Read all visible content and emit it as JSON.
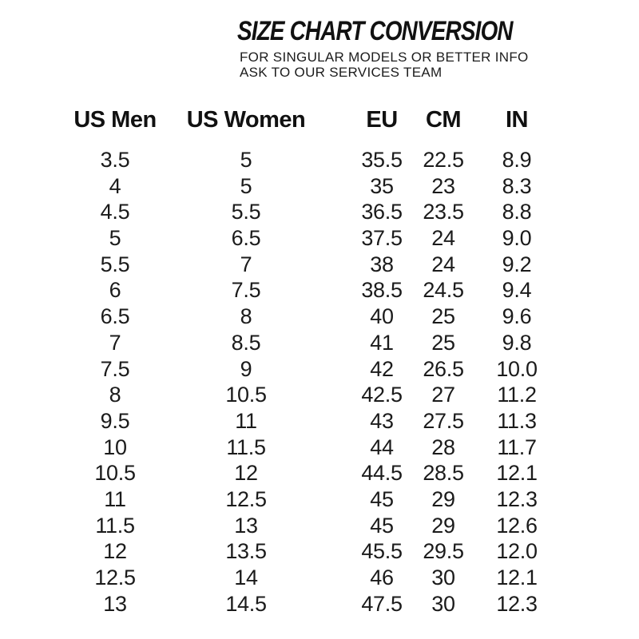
{
  "page": {
    "background_color": "#ffffff",
    "text_color": "#161616"
  },
  "header": {
    "title": "SIZE CHART CONVERSION",
    "subtitle_lines": [
      "FOR SINGULAR MODELS OR BETTER INFO",
      "ASK TO OUR SERVICES TEAM"
    ]
  },
  "chart_data": {
    "type": "table",
    "title": "SIZE CHART CONVERSION",
    "columns": [
      "US Men",
      "US Women",
      "EU",
      "CM",
      "IN"
    ],
    "rows": [
      [
        "3.5",
        "5",
        "35.5",
        "22.5",
        "8.9"
      ],
      [
        "4",
        "5",
        "35",
        "23",
        "8.3"
      ],
      [
        "4.5",
        "5.5",
        "36.5",
        "23.5",
        "8.8"
      ],
      [
        "5",
        "6.5",
        "37.5",
        "24",
        "9.0"
      ],
      [
        "5.5",
        "7",
        "38",
        "24",
        "9.2"
      ],
      [
        "6",
        "7.5",
        "38.5",
        "24.5",
        "9.4"
      ],
      [
        "6.5",
        "8",
        "40",
        "25",
        "9.6"
      ],
      [
        "7",
        "8.5",
        "41",
        "25",
        "9.8"
      ],
      [
        "7.5",
        "9",
        "42",
        "26.5",
        "10.0"
      ],
      [
        "8",
        "10.5",
        "42.5",
        "27",
        "11.2"
      ],
      [
        "9.5",
        "11",
        "43",
        "27.5",
        "11.3"
      ],
      [
        "10",
        "11.5",
        "44",
        "28",
        "11.7"
      ],
      [
        "10.5",
        "12",
        "44.5",
        "28.5",
        "12.1"
      ],
      [
        "11",
        "12.5",
        "45",
        "29",
        "12.3"
      ],
      [
        "11.5",
        "13",
        "45",
        "29",
        "12.6"
      ],
      [
        "12",
        "13.5",
        "45.5",
        "29.5",
        "12.0"
      ],
      [
        "12.5",
        "14",
        "46",
        "30",
        "12.1"
      ],
      [
        "13",
        "14.5",
        "47.5",
        "30",
        "12.3"
      ]
    ]
  }
}
